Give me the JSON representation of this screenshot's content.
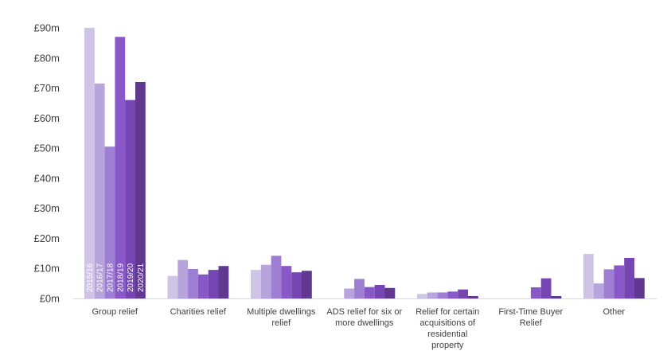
{
  "chart_data": {
    "type": "bar",
    "title": "",
    "xlabel": "",
    "ylabel": "",
    "ylim": [
      0,
      90
    ],
    "yticks": [
      0,
      10,
      20,
      30,
      40,
      50,
      60,
      70,
      80,
      90
    ],
    "ytick_labels": [
      "£0m",
      "£10m",
      "£20m",
      "£30m",
      "£40m",
      "£50m",
      "£60m",
      "£70m",
      "£80m",
      "£90m"
    ],
    "grid": false,
    "legend": "none",
    "categories": [
      [
        "Group relief"
      ],
      [
        "Charities relief"
      ],
      [
        "Multiple dwellings",
        "relief"
      ],
      [
        "ADS relief for six or",
        "more dwellings"
      ],
      [
        "Relief for certain",
        "acquisitions of",
        "residential",
        "property"
      ],
      [
        "First-Time Buyer",
        "Relief"
      ],
      [
        "Other"
      ]
    ],
    "series": [
      {
        "name": "2015/16",
        "color": "#cfc3e6",
        "values": [
          90,
          7.5,
          9.5,
          0,
          1.5,
          0,
          14.8
        ]
      },
      {
        "name": "2016/17",
        "color": "#b7a4dc",
        "values": [
          71.5,
          12.8,
          11.2,
          3.3,
          2,
          0,
          5
        ]
      },
      {
        "name": "2017/18",
        "color": "#9d7ed2",
        "values": [
          50.5,
          9.8,
          14.2,
          6.5,
          2,
          0,
          9.7
        ]
      },
      {
        "name": "2018/19",
        "color": "#8857c8",
        "values": [
          87,
          8,
          10.8,
          3.8,
          2.3,
          3.7,
          11
        ]
      },
      {
        "name": "2019/20",
        "color": "#7546b2",
        "values": [
          66,
          9.5,
          8.7,
          4.5,
          3,
          6.7,
          13.5
        ]
      },
      {
        "name": "2020/21",
        "color": "#60388f",
        "values": [
          72,
          10.8,
          9.2,
          3.5,
          0.8,
          0.8,
          6.8
        ]
      }
    ]
  }
}
